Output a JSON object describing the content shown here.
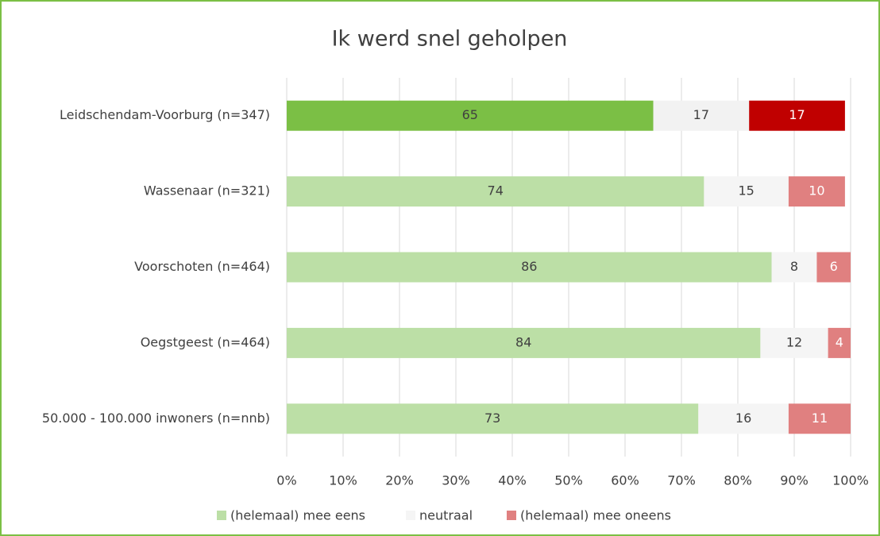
{
  "chart_data": {
    "type": "stacked-bar-horizontal",
    "title": "Ik werd snel geholpen",
    "categories": [
      "Leidschendam-Voorburg (n=347)",
      "Wassenaar (n=321)",
      "Voorschoten (n=464)",
      "Oegstgeest (n=464)",
      "50.000 - 100.000 inwoners (n=nnb)"
    ],
    "series": [
      {
        "name": "(helemaal) mee eens",
        "color": "#bcdfa6",
        "colors": [
          "#7bbf45",
          "#bcdfa6",
          "#bcdfa6",
          "#bcdfa6",
          "#bcdfa6"
        ],
        "values": [
          65,
          74,
          86,
          84,
          73
        ]
      },
      {
        "name": "neutraal",
        "color": "#f5f5f5",
        "colors": [
          "#f2f2f2",
          "#f5f5f5",
          "#f5f5f5",
          "#f5f5f5",
          "#f5f5f5"
        ],
        "values": [
          17,
          15,
          8,
          12,
          16
        ]
      },
      {
        "name": "(helemaal) mee oneens",
        "color": "#e08080",
        "colors": [
          "#c00000",
          "#e08080",
          "#e08080",
          "#e08080",
          "#e08080"
        ],
        "values": [
          17,
          10,
          6,
          4,
          11
        ]
      }
    ],
    "xlim": [
      0,
      100
    ],
    "xticks": [
      {
        "value": 0,
        "label": "0%"
      },
      {
        "value": 10,
        "label": "10%"
      },
      {
        "value": 20,
        "label": "20%"
      },
      {
        "value": 30,
        "label": "30%"
      },
      {
        "value": 40,
        "label": "40%"
      },
      {
        "value": 50,
        "label": "50%"
      },
      {
        "value": 60,
        "label": "60%"
      },
      {
        "value": 70,
        "label": "70%"
      },
      {
        "value": 80,
        "label": "80%"
      },
      {
        "value": 90,
        "label": "90%"
      },
      {
        "value": 100,
        "label": "100%"
      }
    ],
    "grid": true,
    "legend": "bottom"
  }
}
